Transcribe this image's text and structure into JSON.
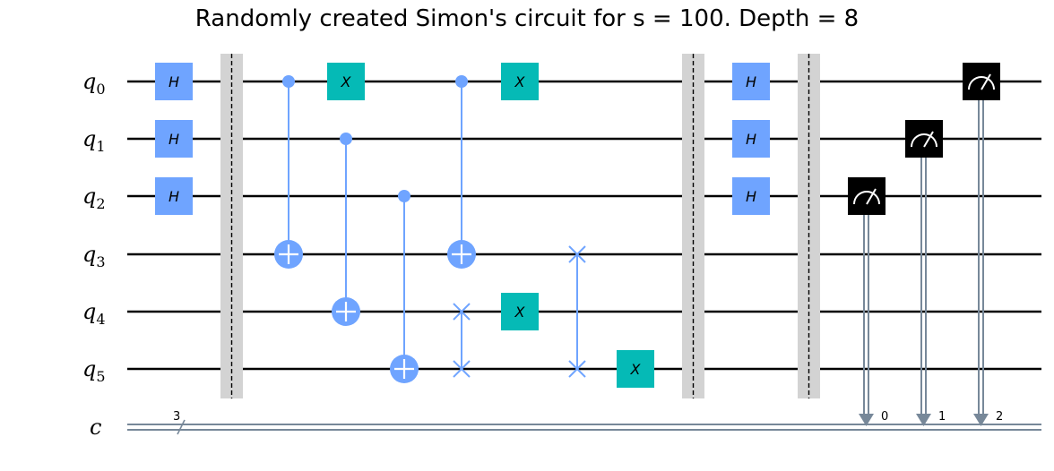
{
  "title": "Randomly created Simon's circuit for s = 100. Depth = 8",
  "colors": {
    "h_gate": "#6fa4ff",
    "x_gate": "#05bab6",
    "control": "#6fa4ff",
    "barrier": "#d3d3d3",
    "measure": "#000000",
    "classical": "#778899",
    "wire": "#000000"
  },
  "qubits": [
    {
      "name": "q",
      "index": "0"
    },
    {
      "name": "q",
      "index": "1"
    },
    {
      "name": "q",
      "index": "2"
    },
    {
      "name": "q",
      "index": "3"
    },
    {
      "name": "q",
      "index": "4"
    },
    {
      "name": "q",
      "index": "5"
    }
  ],
  "classical_register": {
    "name": "c",
    "size": "3"
  },
  "gate_label_h": "H",
  "gate_label_x": "X",
  "measure_bits": [
    "0",
    "1",
    "2"
  ],
  "icons": [
    "measure-icon",
    "swap-icon",
    "target-icon"
  ]
}
